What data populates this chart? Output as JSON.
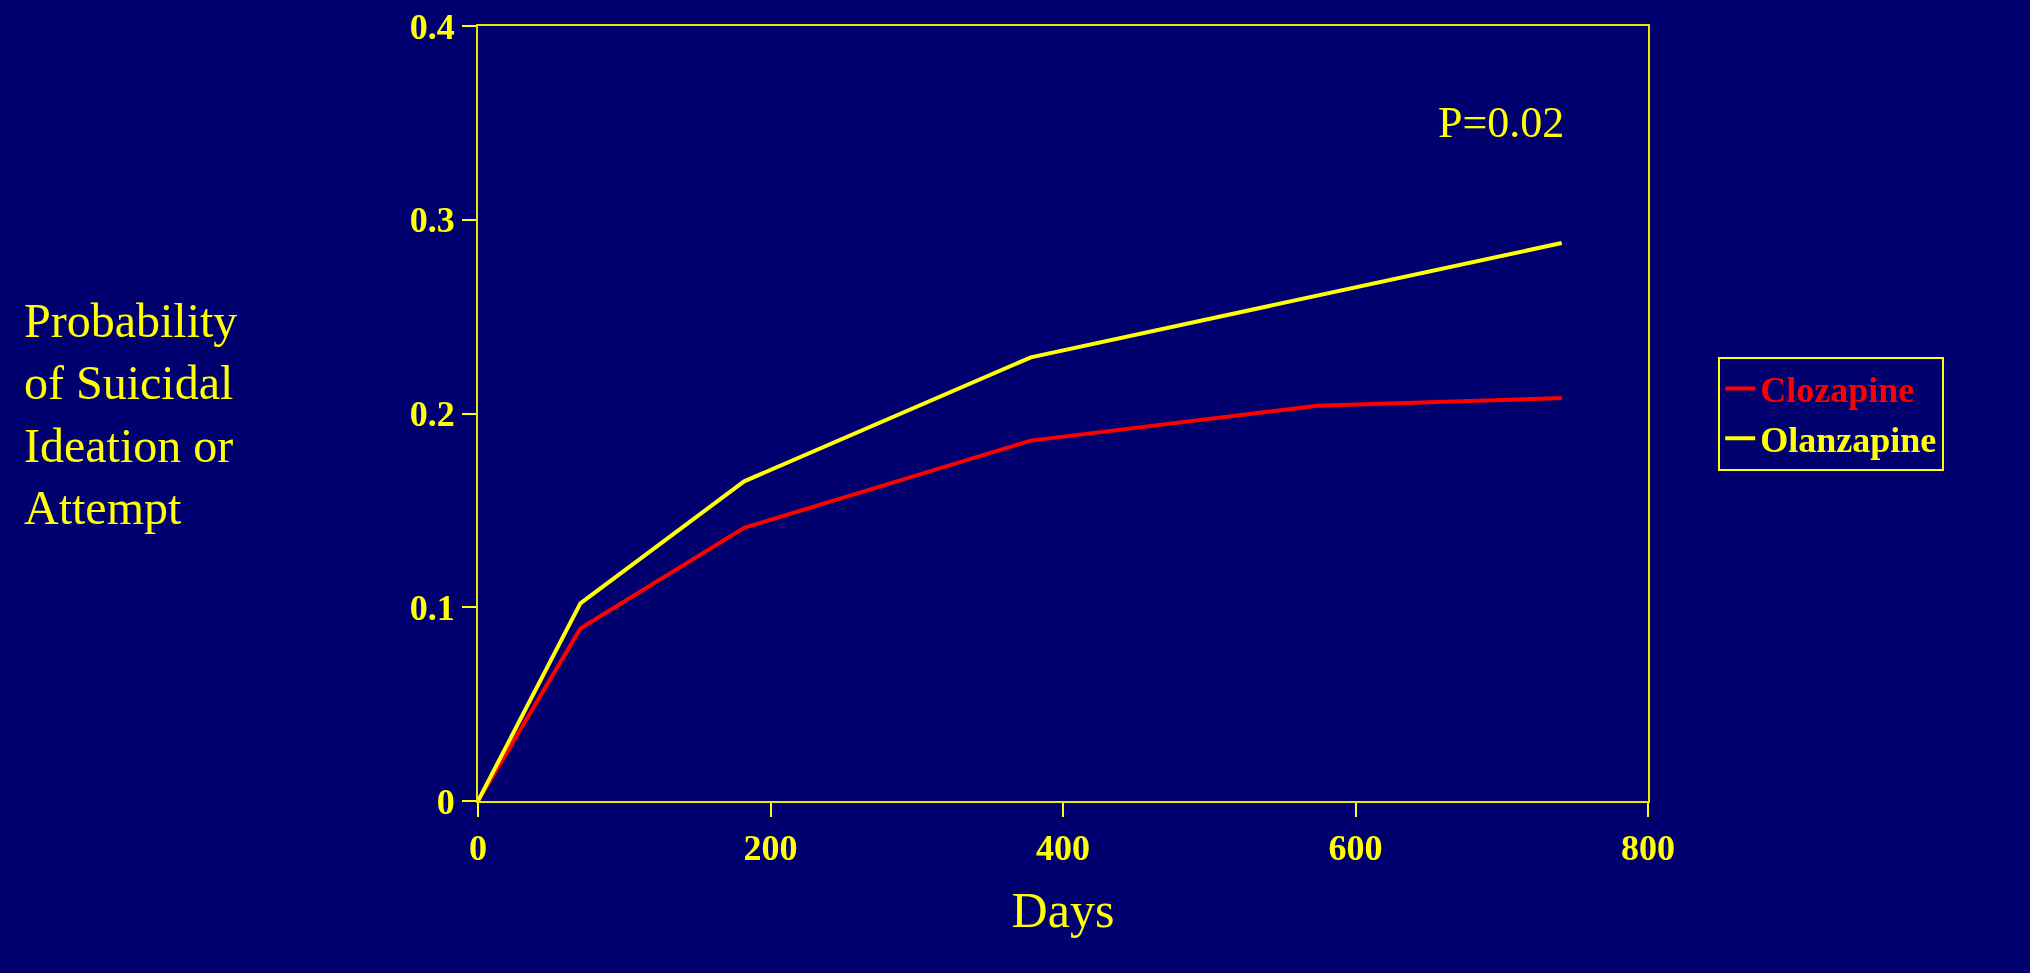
{
  "chart_data": {
    "type": "line",
    "xlabel": "Days",
    "ylabel": "Probability of Suicidal Ideation or Attempt",
    "annotations": [
      "P=0.02"
    ],
    "series": [
      {
        "name": "Clozapine",
        "color": "#ff0000",
        "x": [
          0,
          70,
          182,
          378,
          574,
          741
        ],
        "values": [
          0,
          0.089,
          0.141,
          0.186,
          0.204,
          0.208
        ]
      },
      {
        "name": "Olanzapine",
        "color": "#ffff00",
        "x": [
          0,
          70,
          182,
          378,
          741
        ],
        "values": [
          0,
          0.102,
          0.165,
          0.229,
          0.288
        ]
      }
    ],
    "xlim": [
      0,
      800
    ],
    "xticks": [
      0,
      200,
      400,
      600,
      800
    ],
    "ylim": [
      0,
      0.4
    ],
    "yticks": [
      0,
      0.1,
      0.2,
      0.3,
      0.4
    ],
    "grid": false,
    "legend": "right",
    "marker": "none",
    "line_style": "solid"
  }
}
